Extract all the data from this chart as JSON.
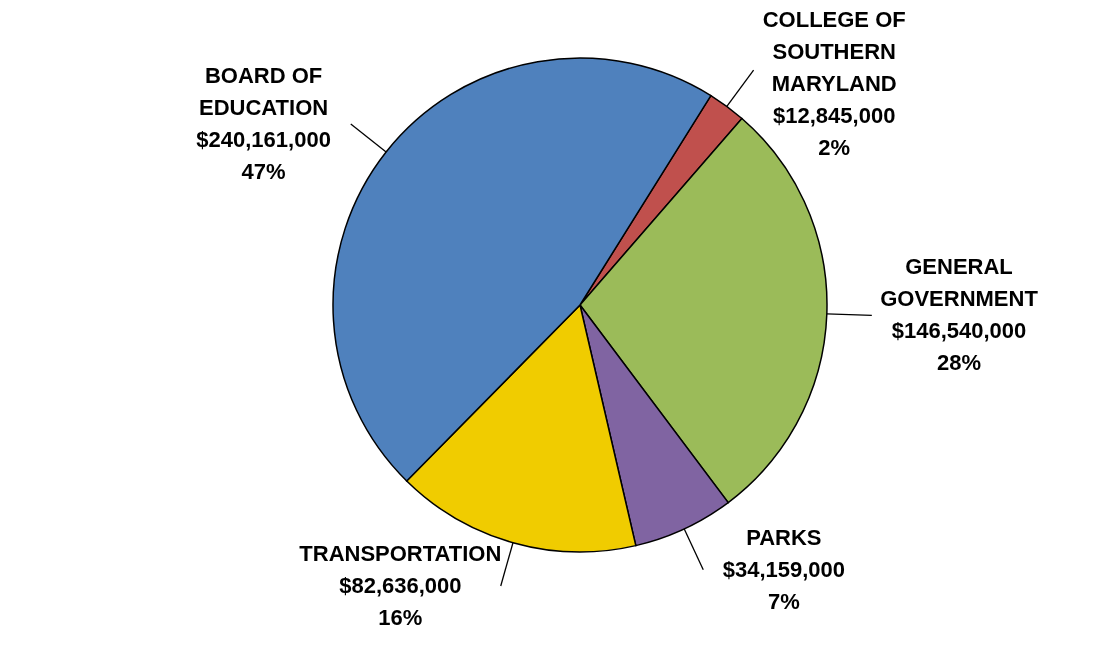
{
  "chart_data": {
    "type": "pie",
    "categories": [
      "COLLEGE OF SOUTHERN MARYLAND",
      "GENERAL GOVERNMENT",
      "PARKS",
      "TRANSPORTATION",
      "BOARD OF EDUCATION"
    ],
    "values": [
      12845000,
      146540000,
      34159000,
      82636000,
      240161000
    ],
    "value_labels": [
      "$12,845,000\n2%",
      "$146,540,000\n28%",
      "$34,159,000\n7%",
      "$82,636,000\n16%",
      "$240,161,000\n47%"
    ],
    "colors": [
      "#c0504d",
      "#9bbb59",
      "#8064a2",
      "#f0cc00",
      "#4f81bd"
    ]
  }
}
